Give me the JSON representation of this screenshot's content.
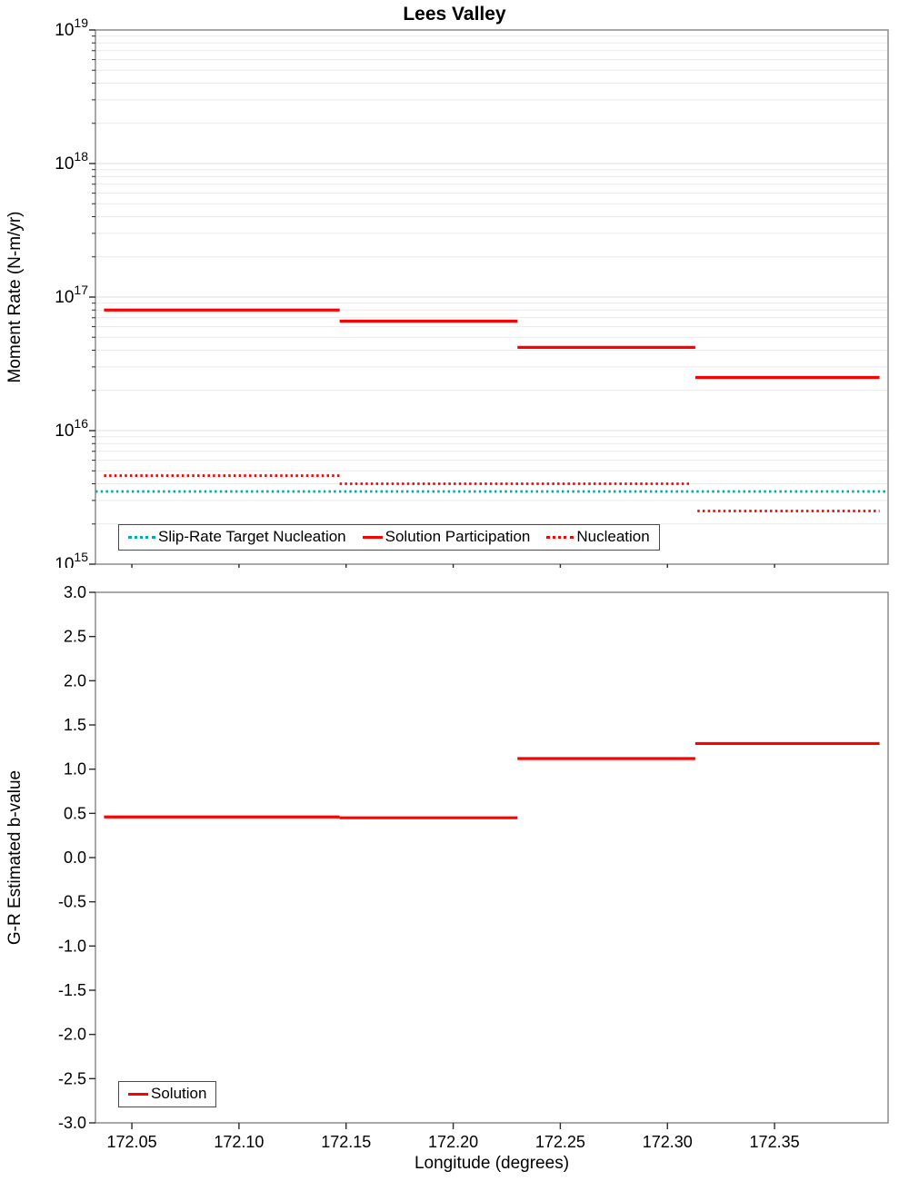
{
  "chart_data": [
    {
      "type": "line",
      "subtype": "step-segments",
      "title": "Lees Valley",
      "xlabel": "",
      "ylabel": "Moment Rate (N-m/yr)",
      "x_range": [
        172.033,
        172.403
      ],
      "x_ticks": [
        172.05,
        172.1,
        172.15,
        172.2,
        172.25,
        172.3,
        172.35
      ],
      "x_tick_labels_visible": false,
      "y_scale": "log",
      "y_range": [
        1000000000000000.0,
        1e+19
      ],
      "y_ticks": [
        1000000000000000.0,
        1e+16,
        1e+17,
        1e+18,
        1e+19
      ],
      "grid": true,
      "legend_position": "bottom-left",
      "series": [
        {
          "name": "Slip-Rate Target Nucleation",
          "color": "#00ACAC",
          "style": "dotted",
          "width": 2.8,
          "segments": [
            {
              "x0": 172.033,
              "x1": 172.403,
              "y": 3500000000000000.0
            }
          ]
        },
        {
          "name": "Solution Participation",
          "color": "#FF0000",
          "style": "solid",
          "width": 3.2,
          "segments": [
            {
              "x0": 172.037,
              "x1": 172.147,
              "y": 8e+16
            },
            {
              "x0": 172.147,
              "x1": 172.23,
              "y": 6.6e+16
            },
            {
              "x0": 172.23,
              "x1": 172.313,
              "y": 4.2e+16
            },
            {
              "x0": 172.313,
              "x1": 172.399,
              "y": 2.5e+16
            }
          ]
        },
        {
          "name": "Nucleation",
          "color": "#FF0000",
          "style": "dotted",
          "width": 2.8,
          "segments": [
            {
              "x0": 172.037,
              "x1": 172.147,
              "y": 4600000000000000.0
            },
            {
              "x0": 172.147,
              "x1": 172.311,
              "y": 4000000000000000.0
            },
            {
              "x0": 172.314,
              "x1": 172.399,
              "y": 2500000000000000.0
            }
          ]
        }
      ]
    },
    {
      "type": "line",
      "subtype": "step-segments",
      "title": "",
      "xlabel": "Longitude (degrees)",
      "ylabel": "G-R Estimated b-value",
      "x_range": [
        172.033,
        172.403
      ],
      "x_ticks": [
        172.05,
        172.1,
        172.15,
        172.2,
        172.25,
        172.3,
        172.35
      ],
      "x_tick_labels_visible": true,
      "y_scale": "linear",
      "y_range": [
        -3.0,
        3.0
      ],
      "y_ticks": [
        3.0,
        2.5,
        2.0,
        1.5,
        1.0,
        0.5,
        0.0,
        -0.5,
        -1.0,
        -1.5,
        -2.0,
        -2.5,
        -3.0
      ],
      "grid": false,
      "legend_position": "bottom-left",
      "series": [
        {
          "name": "Solution",
          "color": "#FF0000",
          "style": "solid",
          "width": 3.2,
          "segments": [
            {
              "x0": 172.037,
              "x1": 172.147,
              "y": 0.46
            },
            {
              "x0": 172.147,
              "x1": 172.23,
              "y": 0.45
            },
            {
              "x0": 172.23,
              "x1": 172.313,
              "y": 1.12
            },
            {
              "x0": 172.313,
              "x1": 172.399,
              "y": 1.29
            }
          ]
        }
      ]
    }
  ]
}
